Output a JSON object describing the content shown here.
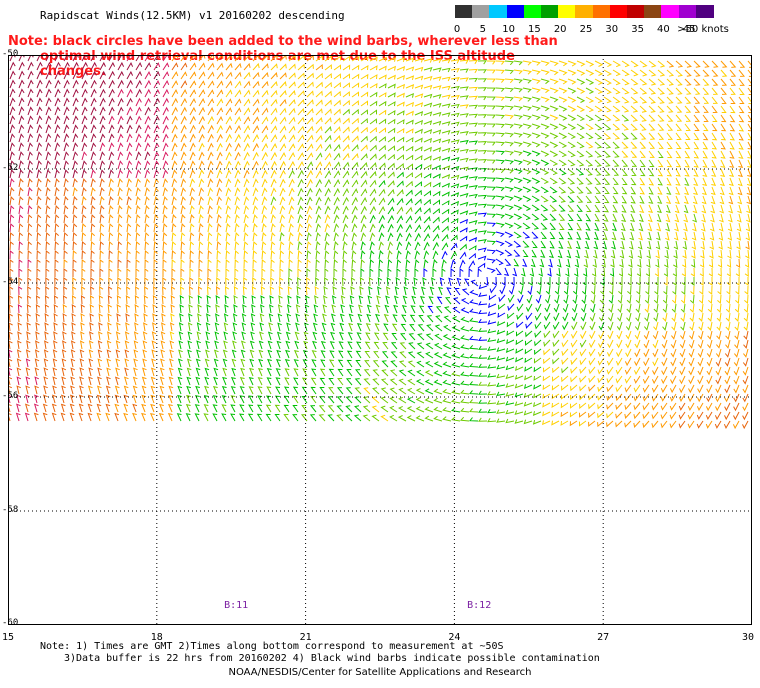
{
  "title": "Rapidscat Winds(12.5KM) v1 20160202 descending",
  "note": {
    "line1": "Note: black circles have been added to the wind barbs, wherever less than",
    "line2": "optimal wind retrieval conditions are met due to the ISS altitude changes."
  },
  "colorbar": {
    "labels": [
      "0",
      "5",
      "10",
      "15",
      "20",
      "25",
      "30",
      "35",
      "40",
      "45",
      ">50 knots"
    ],
    "colors": [
      "#303030",
      "#a0a0a0",
      "#00c8ff",
      "#0000ff",
      "#00ff00",
      "#00a000",
      "#ffff00",
      "#ffb000",
      "#ff7000",
      "#ff0000",
      "#c00000",
      "#8b4513",
      "#ff00ff",
      "#a000d0",
      "#500080"
    ]
  },
  "map": {
    "lat_ticks": [
      "-50",
      "-52",
      "-54",
      "-56",
      "-58",
      "-60"
    ],
    "lon_ticks": [
      "15",
      "18",
      "21",
      "24",
      "27",
      "30"
    ],
    "time_labels": [
      "B:11",
      "B:12"
    ],
    "lat_range": [
      -60,
      -50
    ],
    "lon_range": [
      15,
      30
    ],
    "cyclone_center": {
      "lon": 24.6,
      "lat": -53.9
    },
    "data_gap": "south of about 56.5S"
  },
  "footnote": {
    "line1": "Note: 1) Times are GMT 2)Times along bottom correspond to measurement at ~50S",
    "line2": "3)Data buffer is 22 hrs from 20160202 4) Black wind barbs indicate possible contamination"
  },
  "credit": "NOAA/NESDIS/Center for Satellite Applications and Research"
}
